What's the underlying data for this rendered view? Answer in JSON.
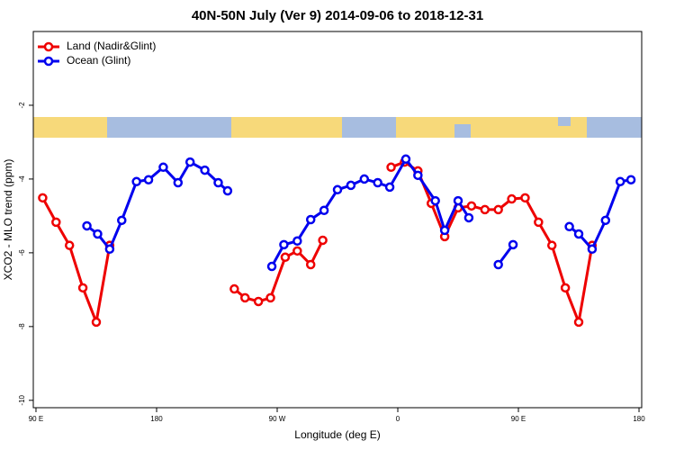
{
  "chart_data": {
    "type": "line",
    "title": "40N-50N July (Ver 9)   2014-09-06 to 2018-12-31",
    "x_label": "Longitude (deg E)",
    "y_label": "XCO2 - MLO trend (ppm)",
    "xlim": [
      88,
      542
    ],
    "ylim": [
      -10.2,
      0
    ],
    "xticks": [
      {
        "value": 90,
        "label": "90 E"
      },
      180,
      {
        "value": 270,
        "label": "90 W"
      },
      {
        "value": 360,
        "label": "0"
      },
      {
        "value": 450,
        "label": "90 E"
      },
      {
        "value": 540,
        "label": "180"
      }
    ],
    "yticks": [
      -2,
      -4,
      -6,
      -8,
      -10
    ],
    "legend": "top-left",
    "series": [
      {
        "name": "Land (Nadir&Glint)",
        "color": "#ee0000",
        "x": [
          95,
          105,
          115,
          125,
          135,
          145,
          190,
          238,
          246,
          256,
          265,
          276,
          285,
          295,
          304,
          330,
          355,
          365,
          375,
          385,
          395,
          405,
          415,
          425,
          435,
          445,
          455,
          465,
          475,
          485,
          495,
          505
        ],
        "values": [
          -4.51,
          -5.17,
          -5.8,
          -6.95,
          -7.88,
          -5.8,
          null,
          -6.98,
          -7.22,
          -7.32,
          -7.22,
          -6.12,
          -5.95,
          -6.32,
          -5.66,
          null,
          -3.68,
          -3.54,
          -3.78,
          -4.66,
          -5.56,
          -4.78,
          -4.73,
          -4.83,
          -4.83,
          -4.54,
          -4.51,
          -5.17,
          -5.8,
          -6.95,
          -7.88,
          -5.8
        ]
      },
      {
        "name": "Ocean (Glint)",
        "color": "#0000ee",
        "x": [
          128,
          136,
          145,
          154,
          165,
          174,
          185,
          196,
          205,
          216,
          226,
          233,
          250,
          266,
          275,
          285,
          295,
          305,
          315,
          325,
          335,
          345,
          354,
          366,
          375,
          388,
          395,
          405,
          413,
          425,
          435,
          446,
          470,
          488,
          495,
          505,
          515,
          526,
          534
        ],
        "values": [
          -5.27,
          -5.49,
          -5.9,
          -5.12,
          -4.07,
          -4.02,
          -3.68,
          -4.1,
          -3.54,
          -3.76,
          -4.1,
          -4.32,
          null,
          -6.37,
          -5.78,
          -5.68,
          -5.1,
          -4.85,
          -4.29,
          -4.17,
          -4.0,
          -4.1,
          -4.22,
          -3.46,
          -3.9,
          -4.59,
          -5.39,
          -4.59,
          -5.05,
          null,
          -6.32,
          -5.78,
          null,
          -5.29,
          -5.49,
          -5.9,
          -5.12,
          -4.07,
          -4.02
        ]
      }
    ]
  }
}
